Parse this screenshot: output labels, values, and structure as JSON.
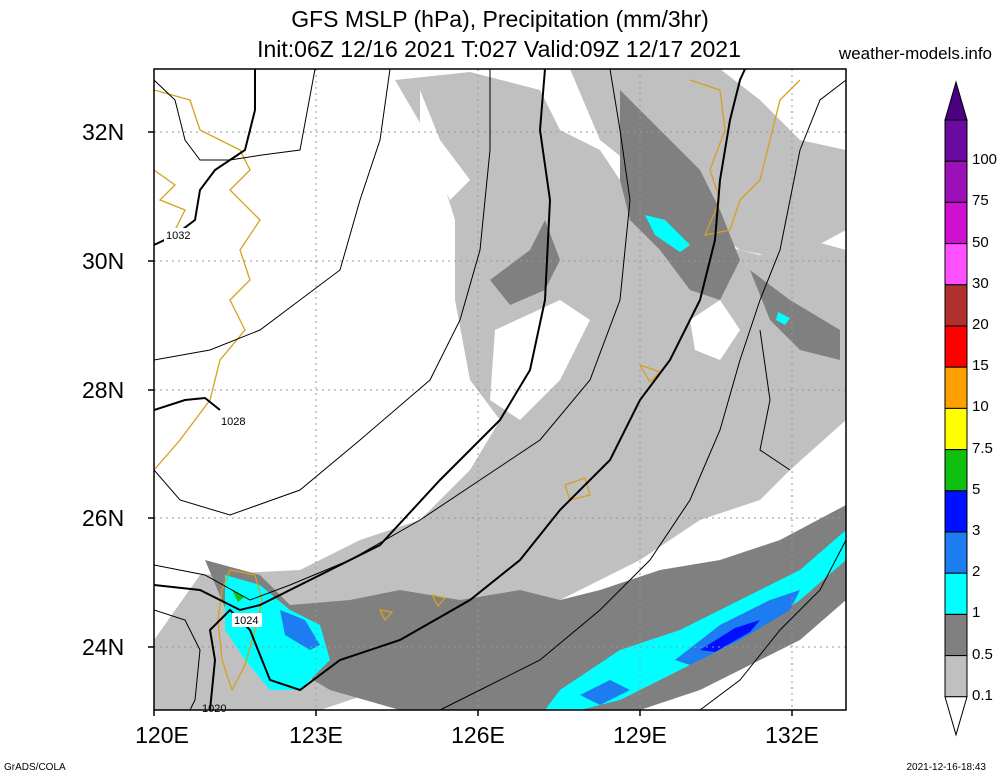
{
  "title_line1": "GFS MSLP (hPa), Precipitation (mm/3hr)",
  "title_line2": "Init:06Z 12/16 2021 T:027 Valid:09Z 12/17 2021",
  "site": "weather-models.info",
  "footer_left": "GrADS/COLA",
  "footer_right": "2021-12-16-18:43",
  "lat_labels": [
    "32N",
    "30N",
    "28N",
    "26N",
    "24N"
  ],
  "lon_labels": [
    "120E",
    "123E",
    "126E",
    "129E",
    "132E"
  ],
  "isobar_labels": [
    "1032",
    "1028",
    "1024",
    "1020"
  ],
  "colorbar": {
    "labels": [
      "100",
      "75",
      "50",
      "30",
      "20",
      "15",
      "10",
      "7.5",
      "5",
      "3",
      "2",
      "1",
      "0.5",
      "0.1"
    ],
    "colors": [
      "#6a0aa0",
      "#9b10b8",
      "#d010d0",
      "#ff50ff",
      "#b03030",
      "#ff0000",
      "#ffa000",
      "#ffff00",
      "#10c010",
      "#0010ff",
      "#1c7cf0",
      "#00ffff",
      "#808080",
      "#c0c0c0"
    ],
    "top_arrow_color": "#4a0080",
    "bottom_arrow_color": "#ffffff"
  },
  "colors": {
    "coast": "#d4a020",
    "precip_light": "#c0c0c0",
    "precip_mid": "#808080",
    "precip_cyan": "#00ffff",
    "precip_blue": "#1c7cf0",
    "precip_dblue": "#0010ff"
  }
}
